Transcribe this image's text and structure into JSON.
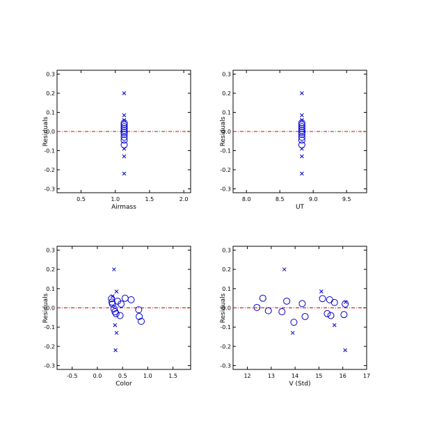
{
  "colors": {
    "frame": "#000000",
    "marker": "#0000cc",
    "zero_line": "#cc0000"
  },
  "chart_data": [
    {
      "type": "scatter",
      "xlabel": "Airmass",
      "ylabel": "Residuals",
      "xlim": [
        0.15,
        2.1
      ],
      "ylim": [
        -0.32,
        0.32
      ],
      "xticks": [
        "0.5",
        "1.0",
        "1.5",
        "2.0"
      ],
      "yticks": [
        "-0.3",
        "-0.2",
        "-0.1",
        "-0.0",
        "0.1",
        "0.2",
        "0.3"
      ],
      "zero_line": 0,
      "circles": [
        {
          "x": 1.13,
          "y": 0.045
        },
        {
          "x": 1.13,
          "y": 0.035
        },
        {
          "x": 1.13,
          "y": 0.025
        },
        {
          "x": 1.13,
          "y": 0.015
        },
        {
          "x": 1.13,
          "y": 0.005
        },
        {
          "x": 1.13,
          "y": -0.005
        },
        {
          "x": 1.13,
          "y": -0.015
        },
        {
          "x": 1.13,
          "y": -0.03
        },
        {
          "x": 1.13,
          "y": -0.045
        },
        {
          "x": 1.13,
          "y": -0.07
        }
      ],
      "crosses": [
        {
          "x": 1.13,
          "y": 0.2
        },
        {
          "x": 1.13,
          "y": 0.085
        },
        {
          "x": 1.13,
          "y": 0.06
        },
        {
          "x": 1.13,
          "y": -0.09
        },
        {
          "x": 1.13,
          "y": -0.13
        },
        {
          "x": 1.13,
          "y": -0.22
        }
      ]
    },
    {
      "type": "scatter",
      "xlabel": "UT",
      "ylabel": "Residuals",
      "xlim": [
        7.8,
        9.8
      ],
      "ylim": [
        -0.32,
        0.32
      ],
      "xticks": [
        "8.0",
        "8.5",
        "9.0",
        "9.5"
      ],
      "yticks": [
        "-0.3",
        "-0.2",
        "-0.1",
        "-0.0",
        "0.1",
        "0.2",
        "0.3"
      ],
      "zero_line": 0,
      "circles": [
        {
          "x": 8.83,
          "y": 0.045
        },
        {
          "x": 8.83,
          "y": 0.035
        },
        {
          "x": 8.83,
          "y": 0.025
        },
        {
          "x": 8.83,
          "y": 0.015
        },
        {
          "x": 8.83,
          "y": 0.005
        },
        {
          "x": 8.83,
          "y": -0.005
        },
        {
          "x": 8.83,
          "y": -0.015
        },
        {
          "x": 8.83,
          "y": -0.03
        },
        {
          "x": 8.83,
          "y": -0.045
        },
        {
          "x": 8.83,
          "y": -0.07
        }
      ],
      "crosses": [
        {
          "x": 8.83,
          "y": 0.2
        },
        {
          "x": 8.83,
          "y": 0.085
        },
        {
          "x": 8.83,
          "y": 0.06
        },
        {
          "x": 8.83,
          "y": -0.09
        },
        {
          "x": 8.83,
          "y": -0.13
        },
        {
          "x": 8.83,
          "y": -0.22
        }
      ]
    },
    {
      "type": "scatter",
      "xlabel": "Color",
      "ylabel": "Residuals",
      "xlim": [
        -0.8,
        1.85
      ],
      "ylim": [
        -0.32,
        0.32
      ],
      "xticks": [
        "-0.5",
        "0.0",
        "0.5",
        "1.0",
        "1.5"
      ],
      "yticks": [
        "-0.3",
        "-0.2",
        "-0.1",
        "-0.0",
        "0.1",
        "0.2",
        "0.3"
      ],
      "zero_line": 0,
      "circles": [
        {
          "x": 0.28,
          "y": 0.048
        },
        {
          "x": 0.29,
          "y": 0.03
        },
        {
          "x": 0.3,
          "y": 0.02
        },
        {
          "x": 0.33,
          "y": -0.005
        },
        {
          "x": 0.35,
          "y": -0.02
        },
        {
          "x": 0.37,
          "y": -0.03
        },
        {
          "x": 0.4,
          "y": 0.035
        },
        {
          "x": 0.45,
          "y": -0.04
        },
        {
          "x": 0.47,
          "y": 0.02
        },
        {
          "x": 0.55,
          "y": 0.05
        },
        {
          "x": 0.67,
          "y": 0.042
        },
        {
          "x": 0.82,
          "y": -0.01
        },
        {
          "x": 0.83,
          "y": -0.045
        },
        {
          "x": 0.87,
          "y": -0.07
        }
      ],
      "crosses": [
        {
          "x": 0.33,
          "y": 0.2
        },
        {
          "x": 0.38,
          "y": 0.085
        },
        {
          "x": 0.3,
          "y": 0.06
        },
        {
          "x": 0.35,
          "y": -0.09
        },
        {
          "x": 0.38,
          "y": -0.13
        },
        {
          "x": 0.36,
          "y": -0.22
        }
      ]
    },
    {
      "type": "scatter",
      "xlabel": "V (Std)",
      "ylabel": "Residuals",
      "xlim": [
        11.4,
        17.0
      ],
      "ylim": [
        -0.32,
        0.32
      ],
      "xticks": [
        "12",
        "13",
        "14",
        "15",
        "16",
        "17"
      ],
      "yticks": [
        "-0.3",
        "-0.2",
        "-0.1",
        "-0.0",
        "0.1",
        "0.2",
        "0.3"
      ],
      "zero_line": 0,
      "circles": [
        {
          "x": 12.4,
          "y": 0.002
        },
        {
          "x": 12.65,
          "y": 0.05
        },
        {
          "x": 12.88,
          "y": -0.015
        },
        {
          "x": 13.45,
          "y": -0.02
        },
        {
          "x": 13.65,
          "y": 0.035
        },
        {
          "x": 13.95,
          "y": -0.075
        },
        {
          "x": 14.3,
          "y": 0.022
        },
        {
          "x": 14.42,
          "y": -0.045
        },
        {
          "x": 15.15,
          "y": 0.048
        },
        {
          "x": 15.35,
          "y": -0.03
        },
        {
          "x": 15.45,
          "y": 0.042
        },
        {
          "x": 15.5,
          "y": -0.04
        },
        {
          "x": 15.65,
          "y": 0.028
        },
        {
          "x": 16.1,
          "y": 0.02
        },
        {
          "x": 16.05,
          "y": -0.035
        }
      ],
      "crosses": [
        {
          "x": 13.55,
          "y": 0.2
        },
        {
          "x": 13.9,
          "y": -0.13
        },
        {
          "x": 15.1,
          "y": 0.085
        },
        {
          "x": 15.65,
          "y": -0.09
        },
        {
          "x": 16.1,
          "y": -0.22
        },
        {
          "x": 16.12,
          "y": 0.03
        }
      ]
    }
  ]
}
